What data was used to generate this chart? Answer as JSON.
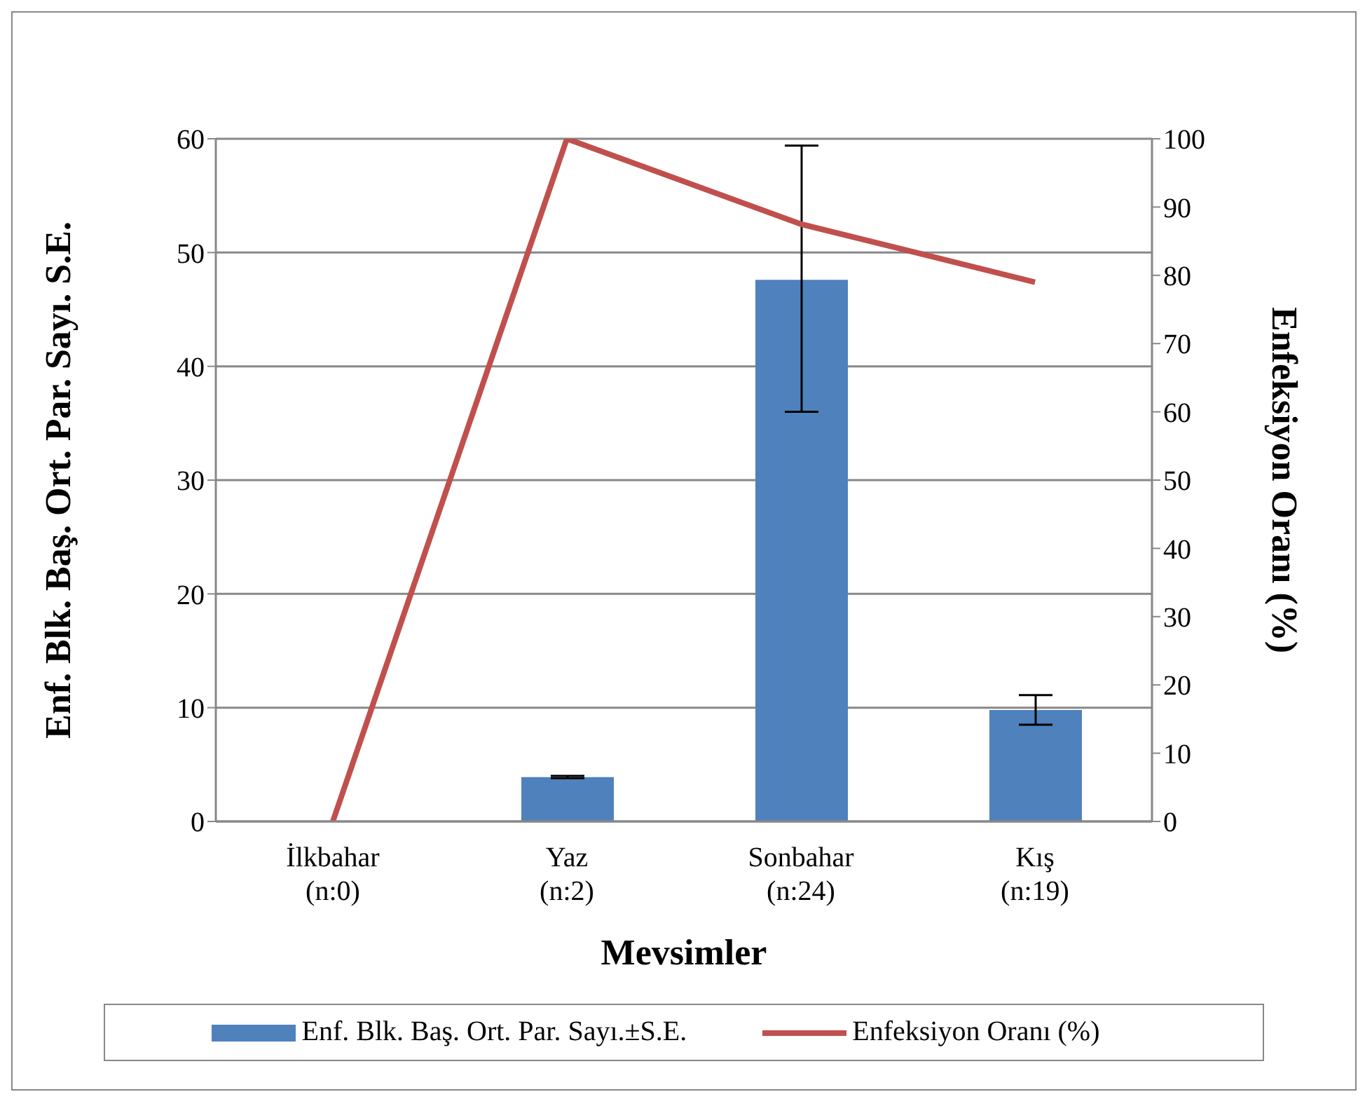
{
  "chart_data": {
    "type": "bar",
    "xlabel": "Mevsimler",
    "ylabel": "Enf. Blk. Baş. Ort. Par. Sayı. S.E.",
    "y2label": "Enfeksiyon Oranı (%)",
    "categories": [
      "İlkbahar\n(n:0)",
      "Yaz\n(n:2)",
      "Sonbahar\n(n:24)",
      "Kış\n(n:19)"
    ],
    "series": [
      {
        "name": "Enf. Blk. Baş. Ort. Par. Sayı.±S.E.",
        "color": "#4f81bd",
        "values": [
          null,
          3.9,
          47.6,
          9.8
        ],
        "errors": [
          null,
          [
            3.8,
            4.0
          ],
          [
            36.0,
            59.4
          ],
          [
            8.5,
            11.1
          ]
        ]
      },
      {
        "name": "Enfeksiyon Oranı (%)",
        "type": "line",
        "axis": "y2",
        "color": "#c0504d",
        "values": [
          0,
          100,
          87.5,
          79
        ],
        "marker": "none"
      }
    ],
    "ylim": [
      0,
      60
    ],
    "yticks": [
      0,
      10,
      20,
      30,
      40,
      50,
      60
    ],
    "y2lim": [
      0,
      100
    ],
    "y2ticks": [
      0,
      10,
      20,
      30,
      40,
      50,
      60,
      70,
      80,
      90,
      100
    ],
    "grid": "y",
    "legend": "bottom"
  }
}
